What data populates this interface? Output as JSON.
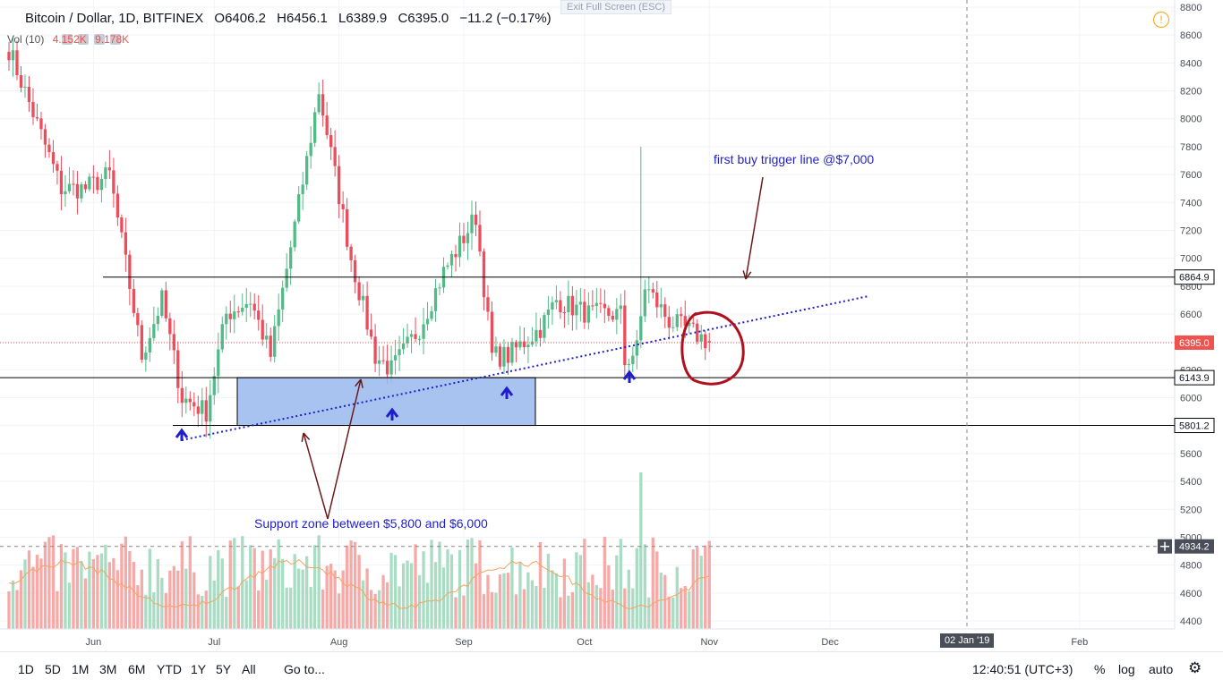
{
  "header": {
    "symbol": "Bitcoin / Dollar, 1D, BITFINEX",
    "open_label": "O",
    "open": "6406.2",
    "high_label": "H",
    "high": "6456.1",
    "low_label": "L",
    "low": "6389.9",
    "close_label": "C",
    "close": "6395.0",
    "change": "−11.2 (−0.17%)"
  },
  "volume_header": {
    "label": "Vol (10)",
    "v1": "4.152K",
    "v2": "9.178K"
  },
  "exit_fullscreen": "Exit Full Screen (ESC)",
  "toolbar": {
    "ranges": [
      "1D",
      "5D",
      "1M",
      "3M",
      "6M",
      "YTD",
      "1Y",
      "5Y",
      "All"
    ],
    "goto": "Go to...",
    "clock": "12:40:51 (UTC+3)",
    "percent": "%",
    "log": "log",
    "auto": "auto"
  },
  "date_badge": "02 Jan '19",
  "colors": {
    "up": "#53b987",
    "down": "#eb4d5c",
    "vol_up": "#a9dcc3",
    "vol_down": "#f7a9a7",
    "trend": "#1f1fc9",
    "annotation": "#6b1a1a",
    "zone": "#9ab8ef",
    "level": "#000000",
    "price_badge": "#ef5350"
  },
  "chart_data": {
    "type": "candlestick",
    "y_axis": {
      "min": 4300,
      "max": 8800,
      "ticks": [
        4400,
        4600,
        4800,
        5000,
        5200,
        5400,
        5600,
        5800,
        6000,
        6200,
        6400,
        6600,
        6800,
        7000,
        7200,
        7400,
        7600,
        7800,
        8000,
        8200,
        8400,
        8600,
        8800
      ]
    },
    "x_axis_labels": [
      "Jun",
      "Jul",
      "Aug",
      "Sep",
      "Oct",
      "Nov",
      "Dec",
      "Feb"
    ],
    "price_labels": [
      {
        "value": 6864.9,
        "text": "6864.9"
      },
      {
        "value": 6395.0,
        "text": "6395.0"
      },
      {
        "value": 6143.9,
        "text": "6143.9"
      },
      {
        "value": 5801.2,
        "text": "5801.2"
      },
      {
        "value": 4934.2,
        "text": "4934.2"
      }
    ],
    "levels": [
      6864.9,
      6143.9,
      5801.2
    ],
    "anchors": [
      {
        "date": "2018-05-11",
        "close": 8500
      },
      {
        "date": "2018-05-24",
        "close": 7500
      },
      {
        "date": "2018-05-30",
        "close": 7500
      },
      {
        "date": "2018-06-05",
        "close": 7600
      },
      {
        "date": "2018-06-10",
        "close": 6800
      },
      {
        "date": "2018-06-13",
        "close": 6300
      },
      {
        "date": "2018-06-18",
        "close": 6700
      },
      {
        "date": "2018-06-23",
        "close": 6000
      },
      {
        "date": "2018-06-29",
        "close": 5900
      },
      {
        "date": "2018-07-04",
        "close": 6600
      },
      {
        "date": "2018-07-10",
        "close": 6700
      },
      {
        "date": "2018-07-15",
        "close": 6300
      },
      {
        "date": "2018-07-24",
        "close": 7700
      },
      {
        "date": "2018-07-27",
        "close": 8200
      },
      {
        "date": "2018-08-04",
        "close": 7000
      },
      {
        "date": "2018-08-10",
        "close": 6300
      },
      {
        "date": "2018-08-14",
        "close": 6200
      },
      {
        "date": "2018-08-21",
        "close": 6500
      },
      {
        "date": "2018-08-27",
        "close": 6900
      },
      {
        "date": "2018-09-04",
        "close": 7300
      },
      {
        "date": "2018-09-08",
        "close": 6300
      },
      {
        "date": "2018-09-12",
        "close": 6300
      },
      {
        "date": "2018-09-20",
        "close": 6500
      },
      {
        "date": "2018-09-24",
        "close": 6700
      },
      {
        "date": "2018-10-02",
        "close": 6600
      },
      {
        "date": "2018-10-10",
        "close": 6600
      },
      {
        "date": "2018-10-11",
        "close": 6250
      },
      {
        "date": "2018-10-14",
        "close": 6350
      },
      {
        "date": "2018-10-16",
        "close": 6800
      },
      {
        "date": "2018-10-22",
        "close": 6550
      },
      {
        "date": "2018-10-29",
        "close": 6450
      },
      {
        "date": "2018-11-01",
        "close": 6395
      }
    ],
    "spike": {
      "date": "2018-10-15",
      "high": 7800
    },
    "volume_spike": {
      "date": "2018-10-15",
      "label": "heavy"
    }
  },
  "annotations": {
    "buy_trigger": "first buy trigger line @$7,000",
    "support_zone": "Support zone between $5,800 and $6,000"
  }
}
